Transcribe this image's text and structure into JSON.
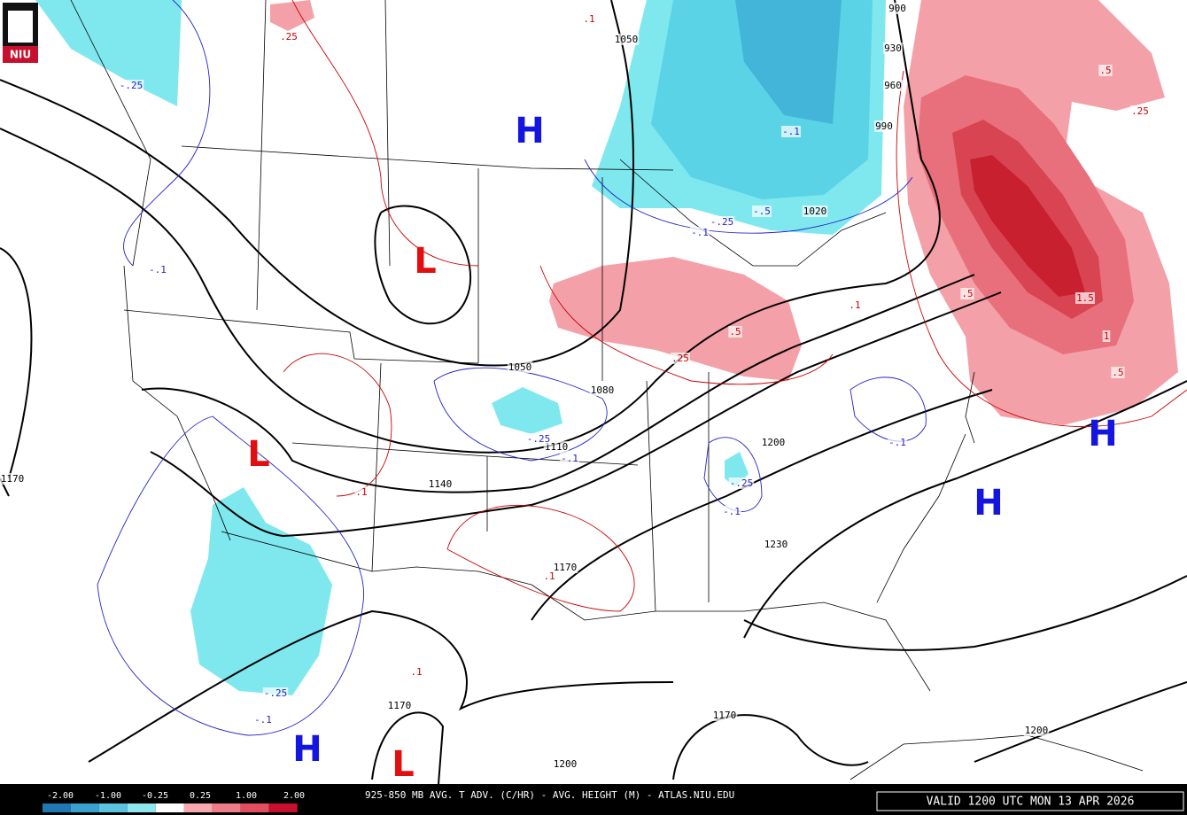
{
  "logo": "NIU",
  "height_labels": [
    "1050",
    "900",
    "930",
    "960",
    "990",
    "1020",
    "1050",
    "1080",
    "1110",
    "1140",
    "1170",
    "1170",
    "1200",
    "1230",
    "1170",
    "1170",
    "1200",
    "1200"
  ],
  "cold_labels": [
    "-.25",
    "-.1",
    "-.5",
    "-.25",
    "-.1",
    "-.1",
    "-.25",
    "-.1",
    "-.1",
    "-.25",
    "-.1",
    "-.25",
    "-.1"
  ],
  "warm_labels": [
    ".25",
    ".1",
    ".5",
    ".25",
    ".5",
    ".1",
    ".5",
    ".25",
    "1.5",
    "1",
    ".5",
    ".1",
    ".1",
    ".1"
  ],
  "pressure_centers": [
    "H",
    "L",
    "L",
    "H",
    "H",
    "H",
    "L"
  ],
  "legend": {
    "ticks": [
      "-2.00",
      "-1.00",
      "-0.25",
      "0.25",
      "1.00",
      "2.00"
    ]
  },
  "footer": {
    "title": "925-850 MB AVG. T ADV. (C/HR) - AVG. HEIGHT (M) - ATLAS.NIU.EDU",
    "valid": "VALID 1200 UTC MON 13 APR 2026"
  }
}
